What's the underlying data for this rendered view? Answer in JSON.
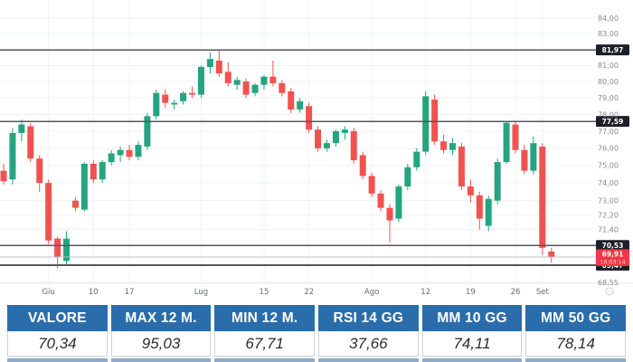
{
  "chart_data": {
    "type": "candlestick",
    "title": "",
    "grid": true,
    "legend": false,
    "y_axis": {
      "side": "right",
      "scale": "log",
      "range": [
        68.4,
        85.3
      ],
      "ticks": [
        {
          "v": 84.0,
          "t": "84,00"
        },
        {
          "v": 83.0,
          "t": "83,00"
        },
        {
          "v": 81.0,
          "t": "81,00"
        },
        {
          "v": 80.0,
          "t": "80,00"
        },
        {
          "v": 79.0,
          "t": "79,00"
        },
        {
          "v": 78.0,
          "t": "78,00"
        },
        {
          "v": 77.0,
          "t": "77,00"
        },
        {
          "v": 76.0,
          "t": "76,00"
        },
        {
          "v": 75.0,
          "t": "75,00"
        },
        {
          "v": 74.0,
          "t": "74,00"
        },
        {
          "v": 73.0,
          "t": "73,00"
        },
        {
          "v": 72.2,
          "t": "72,20"
        },
        {
          "v": 71.4,
          "t": "71,40"
        },
        {
          "v": 68.55,
          "t": "68,55"
        }
      ]
    },
    "x_axis": {
      "labels": [
        {
          "i": 5,
          "t": "Giu"
        },
        {
          "i": 10,
          "t": "10"
        },
        {
          "i": 14,
          "t": "17"
        },
        {
          "i": 22,
          "t": "Lug"
        },
        {
          "i": 29,
          "t": "15"
        },
        {
          "i": 34,
          "t": "22"
        },
        {
          "i": 41,
          "t": "Ago"
        },
        {
          "i": 47,
          "t": "12"
        },
        {
          "i": 52,
          "t": "19"
        },
        {
          "i": 57,
          "t": "26"
        },
        {
          "i": 60,
          "t": "Set"
        }
      ]
    },
    "levels": [
      {
        "value": 81.97,
        "label": "81,97"
      },
      {
        "value": 77.59,
        "label": "77,59"
      },
      {
        "value": 70.53,
        "label": "70,53"
      },
      {
        "value": 69.47,
        "label": "69,47"
      }
    ],
    "last_price": {
      "value": 69.91,
      "label": "69,91",
      "time": "16:03:14"
    },
    "series": {
      "name": "price",
      "ohlc": [
        [
          74.7,
          75.1,
          73.9,
          74.1
        ],
        [
          74.2,
          77.2,
          73.9,
          76.9
        ],
        [
          76.9,
          77.7,
          76.4,
          77.4
        ],
        [
          77.3,
          77.5,
          75.2,
          75.4
        ],
        [
          75.4,
          75.6,
          73.5,
          74.0
        ],
        [
          74.0,
          74.2,
          70.6,
          70.8
        ],
        [
          70.9,
          71.0,
          69.3,
          69.9
        ],
        [
          69.7,
          71.3,
          69.5,
          70.9
        ],
        [
          73.0,
          73.2,
          72.4,
          72.6
        ],
        [
          72.5,
          75.2,
          72.4,
          75.1
        ],
        [
          75.1,
          75.3,
          74.0,
          74.2
        ],
        [
          74.2,
          75.3,
          74.0,
          75.2
        ],
        [
          75.2,
          75.9,
          75.0,
          75.7
        ],
        [
          75.6,
          76.1,
          75.2,
          75.9
        ],
        [
          75.9,
          76.2,
          75.3,
          75.5
        ],
        [
          75.5,
          76.4,
          75.3,
          76.2
        ],
        [
          76.1,
          78.1,
          75.9,
          77.9
        ],
        [
          77.9,
          79.5,
          77.7,
          79.3
        ],
        [
          79.2,
          79.5,
          78.4,
          78.7
        ],
        [
          78.6,
          78.9,
          78.3,
          78.7
        ],
        [
          78.8,
          79.4,
          78.6,
          79.3
        ],
        [
          79.3,
          79.7,
          79.0,
          79.2
        ],
        [
          79.2,
          81.0,
          79.0,
          80.9
        ],
        [
          80.9,
          81.8,
          80.5,
          81.4
        ],
        [
          81.3,
          82.0,
          80.3,
          80.5
        ],
        [
          80.6,
          81.2,
          79.7,
          79.9
        ],
        [
          79.8,
          80.3,
          79.5,
          80.1
        ],
        [
          80.0,
          80.2,
          79.0,
          79.2
        ],
        [
          79.3,
          79.9,
          79.1,
          79.8
        ],
        [
          79.8,
          80.4,
          79.5,
          80.3
        ],
        [
          80.3,
          81.3,
          79.7,
          79.9
        ],
        [
          79.9,
          80.1,
          79.1,
          79.3
        ],
        [
          79.4,
          79.6,
          78.1,
          78.3
        ],
        [
          78.3,
          79.0,
          78.1,
          78.8
        ],
        [
          78.5,
          78.7,
          76.9,
          77.1
        ],
        [
          77.1,
          77.3,
          75.8,
          76.0
        ],
        [
          76.0,
          76.5,
          75.8,
          76.3
        ],
        [
          76.3,
          77.1,
          76.1,
          77.0
        ],
        [
          76.9,
          77.3,
          76.5,
          77.1
        ],
        [
          77.0,
          77.2,
          75.1,
          75.3
        ],
        [
          75.6,
          75.8,
          74.2,
          74.4
        ],
        [
          74.4,
          74.6,
          73.2,
          73.4
        ],
        [
          73.4,
          73.6,
          72.4,
          72.6
        ],
        [
          72.6,
          72.8,
          70.7,
          71.9
        ],
        [
          72.0,
          73.9,
          71.8,
          73.8
        ],
        [
          73.8,
          75.1,
          73.6,
          74.9
        ],
        [
          74.9,
          76.0,
          74.7,
          75.8
        ],
        [
          75.8,
          79.4,
          75.6,
          79.1
        ],
        [
          78.9,
          79.2,
          76.2,
          76.4
        ],
        [
          76.4,
          76.8,
          75.7,
          75.9
        ],
        [
          75.9,
          76.6,
          75.6,
          76.3
        ],
        [
          76.1,
          76.3,
          73.6,
          73.8
        ],
        [
          73.8,
          74.2,
          72.9,
          73.3
        ],
        [
          73.3,
          73.5,
          71.4,
          72.0
        ],
        [
          71.6,
          73.3,
          71.3,
          73.1
        ],
        [
          73.0,
          75.4,
          72.8,
          75.2
        ],
        [
          75.2,
          77.6,
          75.1,
          77.5
        ],
        [
          77.4,
          77.6,
          75.7,
          75.9
        ],
        [
          75.9,
          76.2,
          74.5,
          74.7
        ],
        [
          74.7,
          76.7,
          74.5,
          76.3
        ],
        [
          76.1,
          76.3,
          70.0,
          70.4
        ],
        [
          70.2,
          70.4,
          69.6,
          69.9
        ]
      ]
    },
    "colors": {
      "up": "#24a57f",
      "down": "#ef5350",
      "grid": "#f2f3f7",
      "axis_text": "#85888f",
      "x_text": "#676b74",
      "level_line": "#55575c",
      "level_badge": "#1c1f27",
      "last_line": "#bcc0c8",
      "last_badge": "#f23645"
    }
  },
  "table": {
    "columns": [
      {
        "header": "VALORE",
        "value": "70,34"
      },
      {
        "header": "MAX 12 M.",
        "value": "95,03"
      },
      {
        "header": "MIN 12 M.",
        "value": "67,71"
      },
      {
        "header": "RSI 14 GG",
        "value": "37,66"
      },
      {
        "header": "MM 10 GG",
        "value": "74,11"
      },
      {
        "header": "MM 50 GG",
        "value": "78,14"
      }
    ],
    "header_bg": "#2b6dab"
  }
}
